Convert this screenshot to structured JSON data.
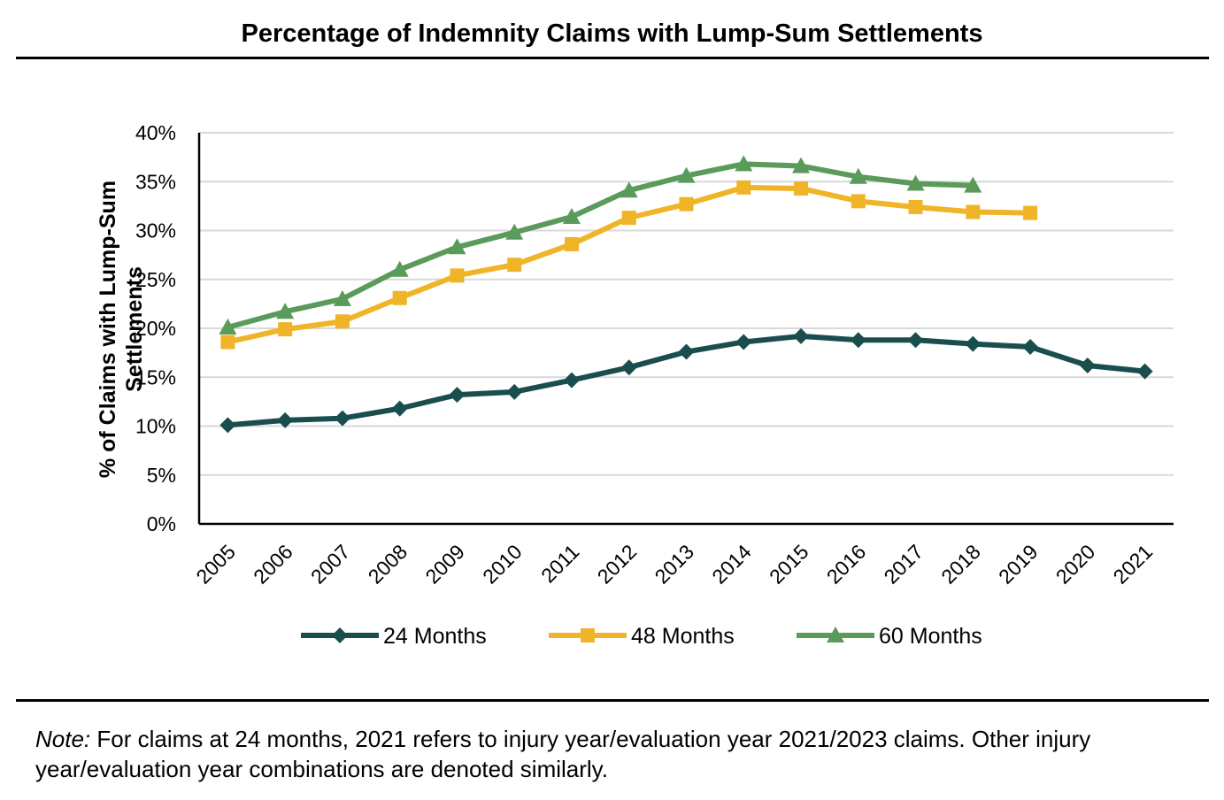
{
  "title": "Percentage of Indemnity Claims with Lump-Sum Settlements",
  "note": {
    "label": "Note:",
    "text": " For claims at 24 months, 2021 refers to injury year/evaluation year 2021/2023 claims. Other injury year/evaluation year combinations are denoted similarly."
  },
  "chart_data": {
    "type": "line",
    "title": "Percentage of Indemnity Claims with Lump-Sum Settlements",
    "xlabel": "",
    "ylabel_lines": [
      "% of Claims with Lump-Sum",
      "Settlements"
    ],
    "x": [
      "2005",
      "2006",
      "2007",
      "2008",
      "2009",
      "2010",
      "2011",
      "2012",
      "2013",
      "2014",
      "2015",
      "2016",
      "2017",
      "2018",
      "2019",
      "2020",
      "2021"
    ],
    "ylim": [
      0,
      40
    ],
    "yticks": [
      0,
      5,
      10,
      15,
      20,
      25,
      30,
      35,
      40
    ],
    "ytick_labels": [
      "0%",
      "5%",
      "10%",
      "15%",
      "20%",
      "25%",
      "30%",
      "35%",
      "40%"
    ],
    "grid": true,
    "legend": "bottom",
    "series": [
      {
        "name": "24 Months",
        "color": "#1a4d4d",
        "marker": "diamond",
        "values": [
          10.1,
          10.6,
          10.8,
          11.8,
          13.2,
          13.5,
          14.7,
          16.0,
          17.6,
          18.6,
          19.2,
          18.8,
          18.8,
          18.4,
          18.1,
          16.2,
          15.6
        ]
      },
      {
        "name": "48 Months",
        "color": "#f0b429",
        "marker": "square",
        "values": [
          18.6,
          19.9,
          20.7,
          23.1,
          25.4,
          26.5,
          28.6,
          31.3,
          32.7,
          34.4,
          34.3,
          33.0,
          32.4,
          31.9,
          31.8,
          null,
          null
        ]
      },
      {
        "name": "60 Months",
        "color": "#5a9a5a",
        "marker": "triangle",
        "values": [
          20.1,
          21.7,
          23.0,
          26.0,
          28.3,
          29.8,
          31.4,
          34.1,
          35.6,
          36.8,
          36.6,
          35.5,
          34.8,
          34.6,
          null,
          null,
          null
        ]
      }
    ]
  }
}
